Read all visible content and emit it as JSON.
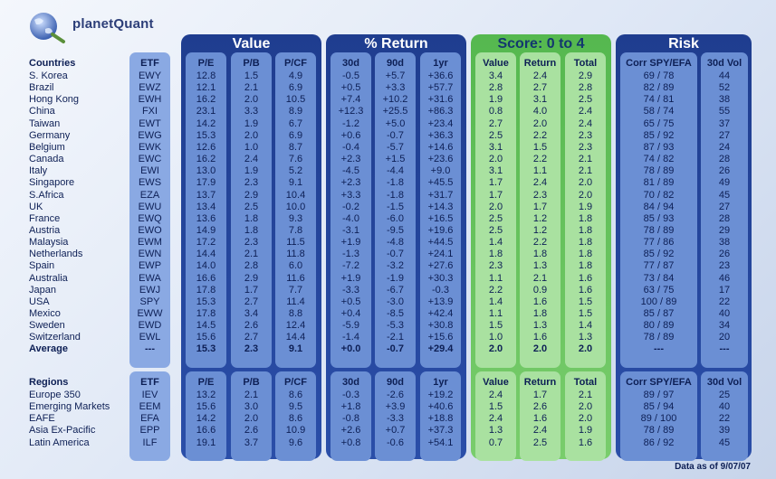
{
  "brand": {
    "name": "planetQuant"
  },
  "chart_data": {
    "type": "table",
    "group_titles": {
      "value": "Value",
      "return": "% Return",
      "score": "Score: 0 to 4",
      "risk": "Risk"
    },
    "columns": [
      "ETF",
      "P/E",
      "P/B",
      "P/CF",
      "30d",
      "90d",
      "1yr",
      "Value",
      "Return",
      "Total",
      "Corr SPY/EFA",
      "30d Vol"
    ],
    "countries_header": "Countries",
    "countries": [
      {
        "name": "S. Korea",
        "etf": "EWY",
        "pe": "12.8",
        "pb": "1.5",
        "pcf": "4.9",
        "r30": "-0.5",
        "r90": "+5.7",
        "r1y": "+36.6",
        "sv": "3.4",
        "sr": "2.4",
        "st": "2.9",
        "corr": "69 / 78",
        "vol": "44"
      },
      {
        "name": "Brazil",
        "etf": "EWZ",
        "pe": "12.1",
        "pb": "2.1",
        "pcf": "6.9",
        "r30": "+0.5",
        "r90": "+3.3",
        "r1y": "+57.7",
        "sv": "2.8",
        "sr": "2.7",
        "st": "2.8",
        "corr": "82 / 89",
        "vol": "52"
      },
      {
        "name": "Hong Kong",
        "etf": "EWH",
        "pe": "16.2",
        "pb": "2.0",
        "pcf": "10.5",
        "r30": "+7.4",
        "r90": "+10.2",
        "r1y": "+31.6",
        "sv": "1.9",
        "sr": "3.1",
        "st": "2.5",
        "corr": "74 / 81",
        "vol": "38"
      },
      {
        "name": "China",
        "etf": "FXI",
        "pe": "23.1",
        "pb": "3.3",
        "pcf": "8.9",
        "r30": "+12.3",
        "r90": "+25.5",
        "r1y": "+86.3",
        "sv": "0.8",
        "sr": "4.0",
        "st": "2.4",
        "corr": "58 / 74",
        "vol": "55"
      },
      {
        "name": "Taiwan",
        "etf": "EWT",
        "pe": "14.2",
        "pb": "1.9",
        "pcf": "6.7",
        "r30": "-1.2",
        "r90": "+5.0",
        "r1y": "+23.4",
        "sv": "2.7",
        "sr": "2.0",
        "st": "2.4",
        "corr": "65 / 75",
        "vol": "37"
      },
      {
        "name": "Germany",
        "etf": "EWG",
        "pe": "15.3",
        "pb": "2.0",
        "pcf": "6.9",
        "r30": "+0.6",
        "r90": "-0.7",
        "r1y": "+36.3",
        "sv": "2.5",
        "sr": "2.2",
        "st": "2.3",
        "corr": "85 / 92",
        "vol": "27"
      },
      {
        "name": "Belgium",
        "etf": "EWK",
        "pe": "12.6",
        "pb": "1.0",
        "pcf": "8.7",
        "r30": "-0.4",
        "r90": "-5.7",
        "r1y": "+14.6",
        "sv": "3.1",
        "sr": "1.5",
        "st": "2.3",
        "corr": "87 / 93",
        "vol": "24"
      },
      {
        "name": "Canada",
        "etf": "EWC",
        "pe": "16.2",
        "pb": "2.4",
        "pcf": "7.6",
        "r30": "+2.3",
        "r90": "+1.5",
        "r1y": "+23.6",
        "sv": "2.0",
        "sr": "2.2",
        "st": "2.1",
        "corr": "74 / 82",
        "vol": "28"
      },
      {
        "name": "Italy",
        "etf": "EWI",
        "pe": "13.0",
        "pb": "1.9",
        "pcf": "5.2",
        "r30": "-4.5",
        "r90": "-4.4",
        "r1y": "+9.0",
        "sv": "3.1",
        "sr": "1.1",
        "st": "2.1",
        "corr": "78 / 89",
        "vol": "26"
      },
      {
        "name": "Singapore",
        "etf": "EWS",
        "pe": "17.9",
        "pb": "2.3",
        "pcf": "9.1",
        "r30": "+2.3",
        "r90": "-1.8",
        "r1y": "+45.5",
        "sv": "1.7",
        "sr": "2.4",
        "st": "2.0",
        "corr": "81 / 89",
        "vol": "49"
      },
      {
        "name": "S.Africa",
        "etf": "EZA",
        "pe": "13.7",
        "pb": "2.9",
        "pcf": "10.4",
        "r30": "+3.3",
        "r90": "-1.8",
        "r1y": "+31.7",
        "sv": "1.7",
        "sr": "2.3",
        "st": "2.0",
        "corr": "70 / 82",
        "vol": "45"
      },
      {
        "name": "UK",
        "etf": "EWU",
        "pe": "13.4",
        "pb": "2.5",
        "pcf": "10.0",
        "r30": "-0.2",
        "r90": "-1.5",
        "r1y": "+14.3",
        "sv": "2.0",
        "sr": "1.7",
        "st": "1.9",
        "corr": "84 / 94",
        "vol": "27"
      },
      {
        "name": "France",
        "etf": "EWQ",
        "pe": "13.6",
        "pb": "1.8",
        "pcf": "9.3",
        "r30": "-4.0",
        "r90": "-6.0",
        "r1y": "+16.5",
        "sv": "2.5",
        "sr": "1.2",
        "st": "1.8",
        "corr": "85 / 93",
        "vol": "28"
      },
      {
        "name": "Austria",
        "etf": "EWO",
        "pe": "14.9",
        "pb": "1.8",
        "pcf": "7.8",
        "r30": "-3.1",
        "r90": "-9.5",
        "r1y": "+19.6",
        "sv": "2.5",
        "sr": "1.2",
        "st": "1.8",
        "corr": "78 / 89",
        "vol": "29"
      },
      {
        "name": "Malaysia",
        "etf": "EWM",
        "pe": "17.2",
        "pb": "2.3",
        "pcf": "11.5",
        "r30": "+1.9",
        "r90": "-4.8",
        "r1y": "+44.5",
        "sv": "1.4",
        "sr": "2.2",
        "st": "1.8",
        "corr": "77 / 86",
        "vol": "38"
      },
      {
        "name": "Netherlands",
        "etf": "EWN",
        "pe": "14.4",
        "pb": "2.1",
        "pcf": "11.8",
        "r30": "-1.3",
        "r90": "-0.7",
        "r1y": "+24.1",
        "sv": "1.8",
        "sr": "1.8",
        "st": "1.8",
        "corr": "85 / 92",
        "vol": "26"
      },
      {
        "name": "Spain",
        "etf": "EWP",
        "pe": "14.0",
        "pb": "2.8",
        "pcf": "6.0",
        "r30": "-7.2",
        "r90": "-3.2",
        "r1y": "+27.6",
        "sv": "2.3",
        "sr": "1.3",
        "st": "1.8",
        "corr": "77 / 87",
        "vol": "23"
      },
      {
        "name": "Australia",
        "etf": "EWA",
        "pe": "16.6",
        "pb": "2.9",
        "pcf": "11.6",
        "r30": "+1.9",
        "r90": "-1.9",
        "r1y": "+30.3",
        "sv": "1.1",
        "sr": "2.1",
        "st": "1.6",
        "corr": "73 / 84",
        "vol": "46"
      },
      {
        "name": "Japan",
        "etf": "EWJ",
        "pe": "17.8",
        "pb": "1.7",
        "pcf": "7.7",
        "r30": "-3.3",
        "r90": "-6.7",
        "r1y": "-0.3",
        "sv": "2.2",
        "sr": "0.9",
        "st": "1.6",
        "corr": "63 / 75",
        "vol": "17"
      },
      {
        "name": "USA",
        "etf": "SPY",
        "pe": "15.3",
        "pb": "2.7",
        "pcf": "11.4",
        "r30": "+0.5",
        "r90": "-3.0",
        "r1y": "+13.9",
        "sv": "1.4",
        "sr": "1.6",
        "st": "1.5",
        "corr": "100 / 89",
        "vol": "22"
      },
      {
        "name": "Mexico",
        "etf": "EWW",
        "pe": "17.8",
        "pb": "3.4",
        "pcf": "8.8",
        "r30": "+0.4",
        "r90": "-8.5",
        "r1y": "+42.4",
        "sv": "1.1",
        "sr": "1.8",
        "st": "1.5",
        "corr": "85 / 87",
        "vol": "40"
      },
      {
        "name": "Sweden",
        "etf": "EWD",
        "pe": "14.5",
        "pb": "2.6",
        "pcf": "12.4",
        "r30": "-5.9",
        "r90": "-5.3",
        "r1y": "+30.8",
        "sv": "1.5",
        "sr": "1.3",
        "st": "1.4",
        "corr": "80 / 89",
        "vol": "34"
      },
      {
        "name": "Switzerland",
        "etf": "EWL",
        "pe": "15.6",
        "pb": "2.7",
        "pcf": "14.4",
        "r30": "-1.4",
        "r90": "-2.1",
        "r1y": "+15.6",
        "sv": "1.0",
        "sr": "1.6",
        "st": "1.3",
        "corr": "78 / 89",
        "vol": "20"
      }
    ],
    "average": {
      "name": "Average",
      "etf": "---",
      "pe": "15.3",
      "pb": "2.3",
      "pcf": "9.1",
      "r30": "+0.0",
      "r90": "-0.7",
      "r1y": "+29.4",
      "sv": "2.0",
      "sr": "2.0",
      "st": "2.0",
      "corr": "---",
      "vol": "---"
    },
    "regions_header": "Regions",
    "regions": [
      {
        "name": "Europe 350",
        "etf": "IEV",
        "pe": "13.2",
        "pb": "2.1",
        "pcf": "8.6",
        "r30": "-0.3",
        "r90": "-2.6",
        "r1y": "+19.2",
        "sv": "2.4",
        "sr": "1.7",
        "st": "2.1",
        "corr": "89 / 97",
        "vol": "25"
      },
      {
        "name": "Emerging Markets",
        "etf": "EEM",
        "pe": "15.6",
        "pb": "3.0",
        "pcf": "9.5",
        "r30": "+1.8",
        "r90": "+3.9",
        "r1y": "+40.6",
        "sv": "1.5",
        "sr": "2.6",
        "st": "2.0",
        "corr": "85 / 94",
        "vol": "40"
      },
      {
        "name": "EAFE",
        "etf": "EFA",
        "pe": "14.2",
        "pb": "2.0",
        "pcf": "8.6",
        "r30": "-0.8",
        "r90": "-3.3",
        "r1y": "+18.8",
        "sv": "2.4",
        "sr": "1.6",
        "st": "2.0",
        "corr": "89 / 100",
        "vol": "22"
      },
      {
        "name": "Asia Ex-Pacific",
        "etf": "EPP",
        "pe": "16.6",
        "pb": "2.6",
        "pcf": "10.9",
        "r30": "+2.6",
        "r90": "+0.7",
        "r1y": "+37.3",
        "sv": "1.3",
        "sr": "2.4",
        "st": "1.9",
        "corr": "78 / 89",
        "vol": "39"
      },
      {
        "name": "Latin America",
        "etf": "ILF",
        "pe": "19.1",
        "pb": "3.7",
        "pcf": "9.6",
        "r30": "+0.8",
        "r90": "-0.6",
        "r1y": "+54.1",
        "sv": "0.7",
        "sr": "2.5",
        "st": "1.6",
        "corr": "86 / 92",
        "vol": "45"
      }
    ]
  },
  "footer": "Data as of 9/07/07"
}
